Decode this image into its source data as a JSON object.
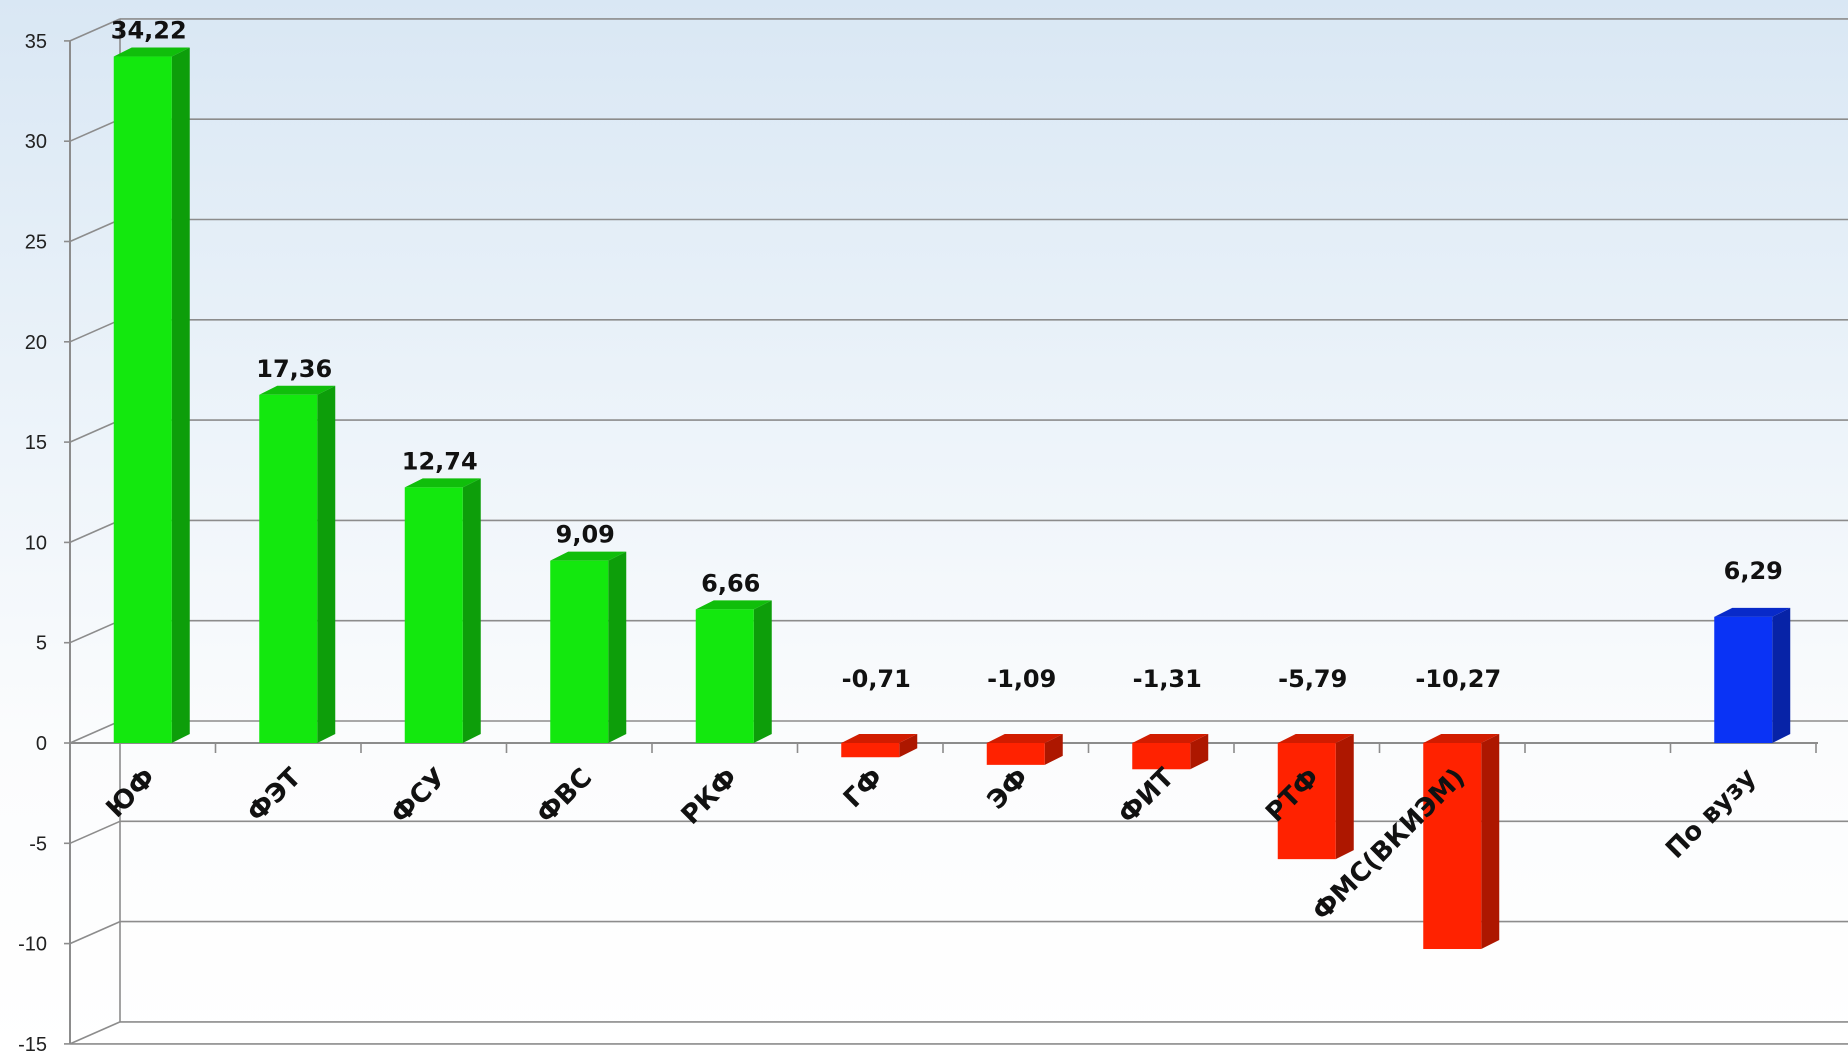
{
  "chart_data": {
    "type": "bar",
    "title": "",
    "xlabel": "",
    "ylabel": "",
    "ylim": [
      -15,
      35
    ],
    "yticks": [
      35,
      30,
      25,
      20,
      15,
      10,
      5,
      0,
      -5,
      -10,
      -15
    ],
    "categories": [
      "ЮФ",
      "ФЭТ",
      "ФСУ",
      "ФВС",
      "РКФ",
      "ГФ",
      "ЭФ",
      "ФИТ",
      "РТФ",
      "ФМС(ВКИЭМ)",
      "По вузу"
    ],
    "values": [
      34.22,
      17.36,
      12.74,
      9.09,
      6.66,
      -0.71,
      -1.09,
      -1.31,
      -5.79,
      -10.27,
      6.29
    ],
    "value_labels": [
      "34,22",
      "17,36",
      "12,74",
      "9,09",
      "6,66",
      "-0,71",
      "-1,09",
      "-1,31",
      "-5,79",
      "-10,27",
      "6,29"
    ],
    "grid": true,
    "legend": "none",
    "colors": {
      "positive": "#13e80e",
      "negative": "#ff2200",
      "total": "#0a33f5",
      "total_label": "#1e2bea",
      "grid": "#8c8c8c"
    }
  }
}
